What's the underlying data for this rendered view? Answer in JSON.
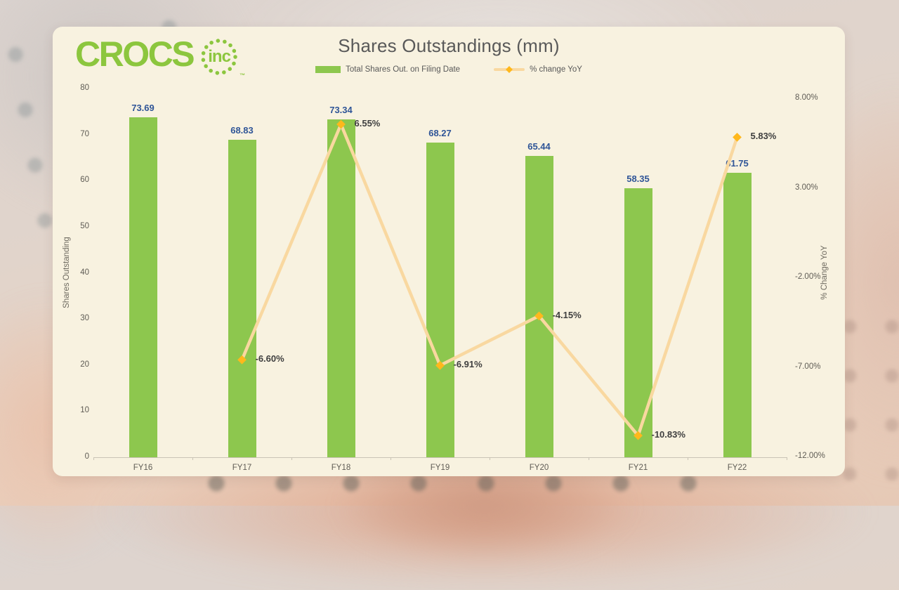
{
  "logo": {
    "brand": "CROCS",
    "suffix": "inc",
    "trademark": "™",
    "color": "#8CC63E"
  },
  "title": "Shares Outstandings (mm)",
  "legend": {
    "items": [
      {
        "label": "Total Shares Out. on Filing Date",
        "swatch": "bar",
        "color": "#8DC74E"
      },
      {
        "label": "% change YoY",
        "swatch": "line",
        "line_color": "#F9D8A0",
        "marker_color": "#FFB81C"
      }
    ]
  },
  "chart_data": {
    "type": "combo-bar-line",
    "title": "Shares Outstandings (mm)",
    "categories": [
      "FY16",
      "FY17",
      "FY18",
      "FY19",
      "FY20",
      "FY21",
      "FY22"
    ],
    "series": [
      {
        "name": "Total Shares Out. on Filing Date",
        "type": "bar",
        "axis": "left",
        "color": "#8DC74E",
        "values": [
          73.69,
          68.83,
          73.34,
          68.27,
          65.44,
          58.35,
          61.75
        ],
        "data_labels": [
          "73.69",
          "68.83",
          "73.34",
          "68.27",
          "65.44",
          "58.35",
          "61.75"
        ],
        "label_color": "#2F5597"
      },
      {
        "name": "% change YoY",
        "type": "line",
        "axis": "right",
        "color": "#F9D8A0",
        "marker": "diamond",
        "marker_color": "#FFB81C",
        "values": [
          null,
          -6.6,
          6.55,
          -6.91,
          -4.15,
          -10.83,
          5.83
        ],
        "data_labels": [
          null,
          "-6.60%",
          "6.55%",
          "-6.91%",
          "-4.15%",
          "-10.83%",
          "5.83%"
        ],
        "label_color": "#3F3F3F"
      }
    ],
    "left_axis": {
      "title": "Shares Outstanding",
      "min": 0,
      "max": 80,
      "ticks": [
        "80",
        "70",
        "60",
        "50",
        "40",
        "30",
        "20",
        "10",
        "0"
      ]
    },
    "right_axis": {
      "title": "% Change YoY",
      "min": -12,
      "max": 8,
      "ticks": [
        "8.00%",
        "3.00%",
        "-2.00%",
        "-7.00%",
        "-12.00%"
      ]
    },
    "grid": false,
    "legend_position": "top"
  }
}
